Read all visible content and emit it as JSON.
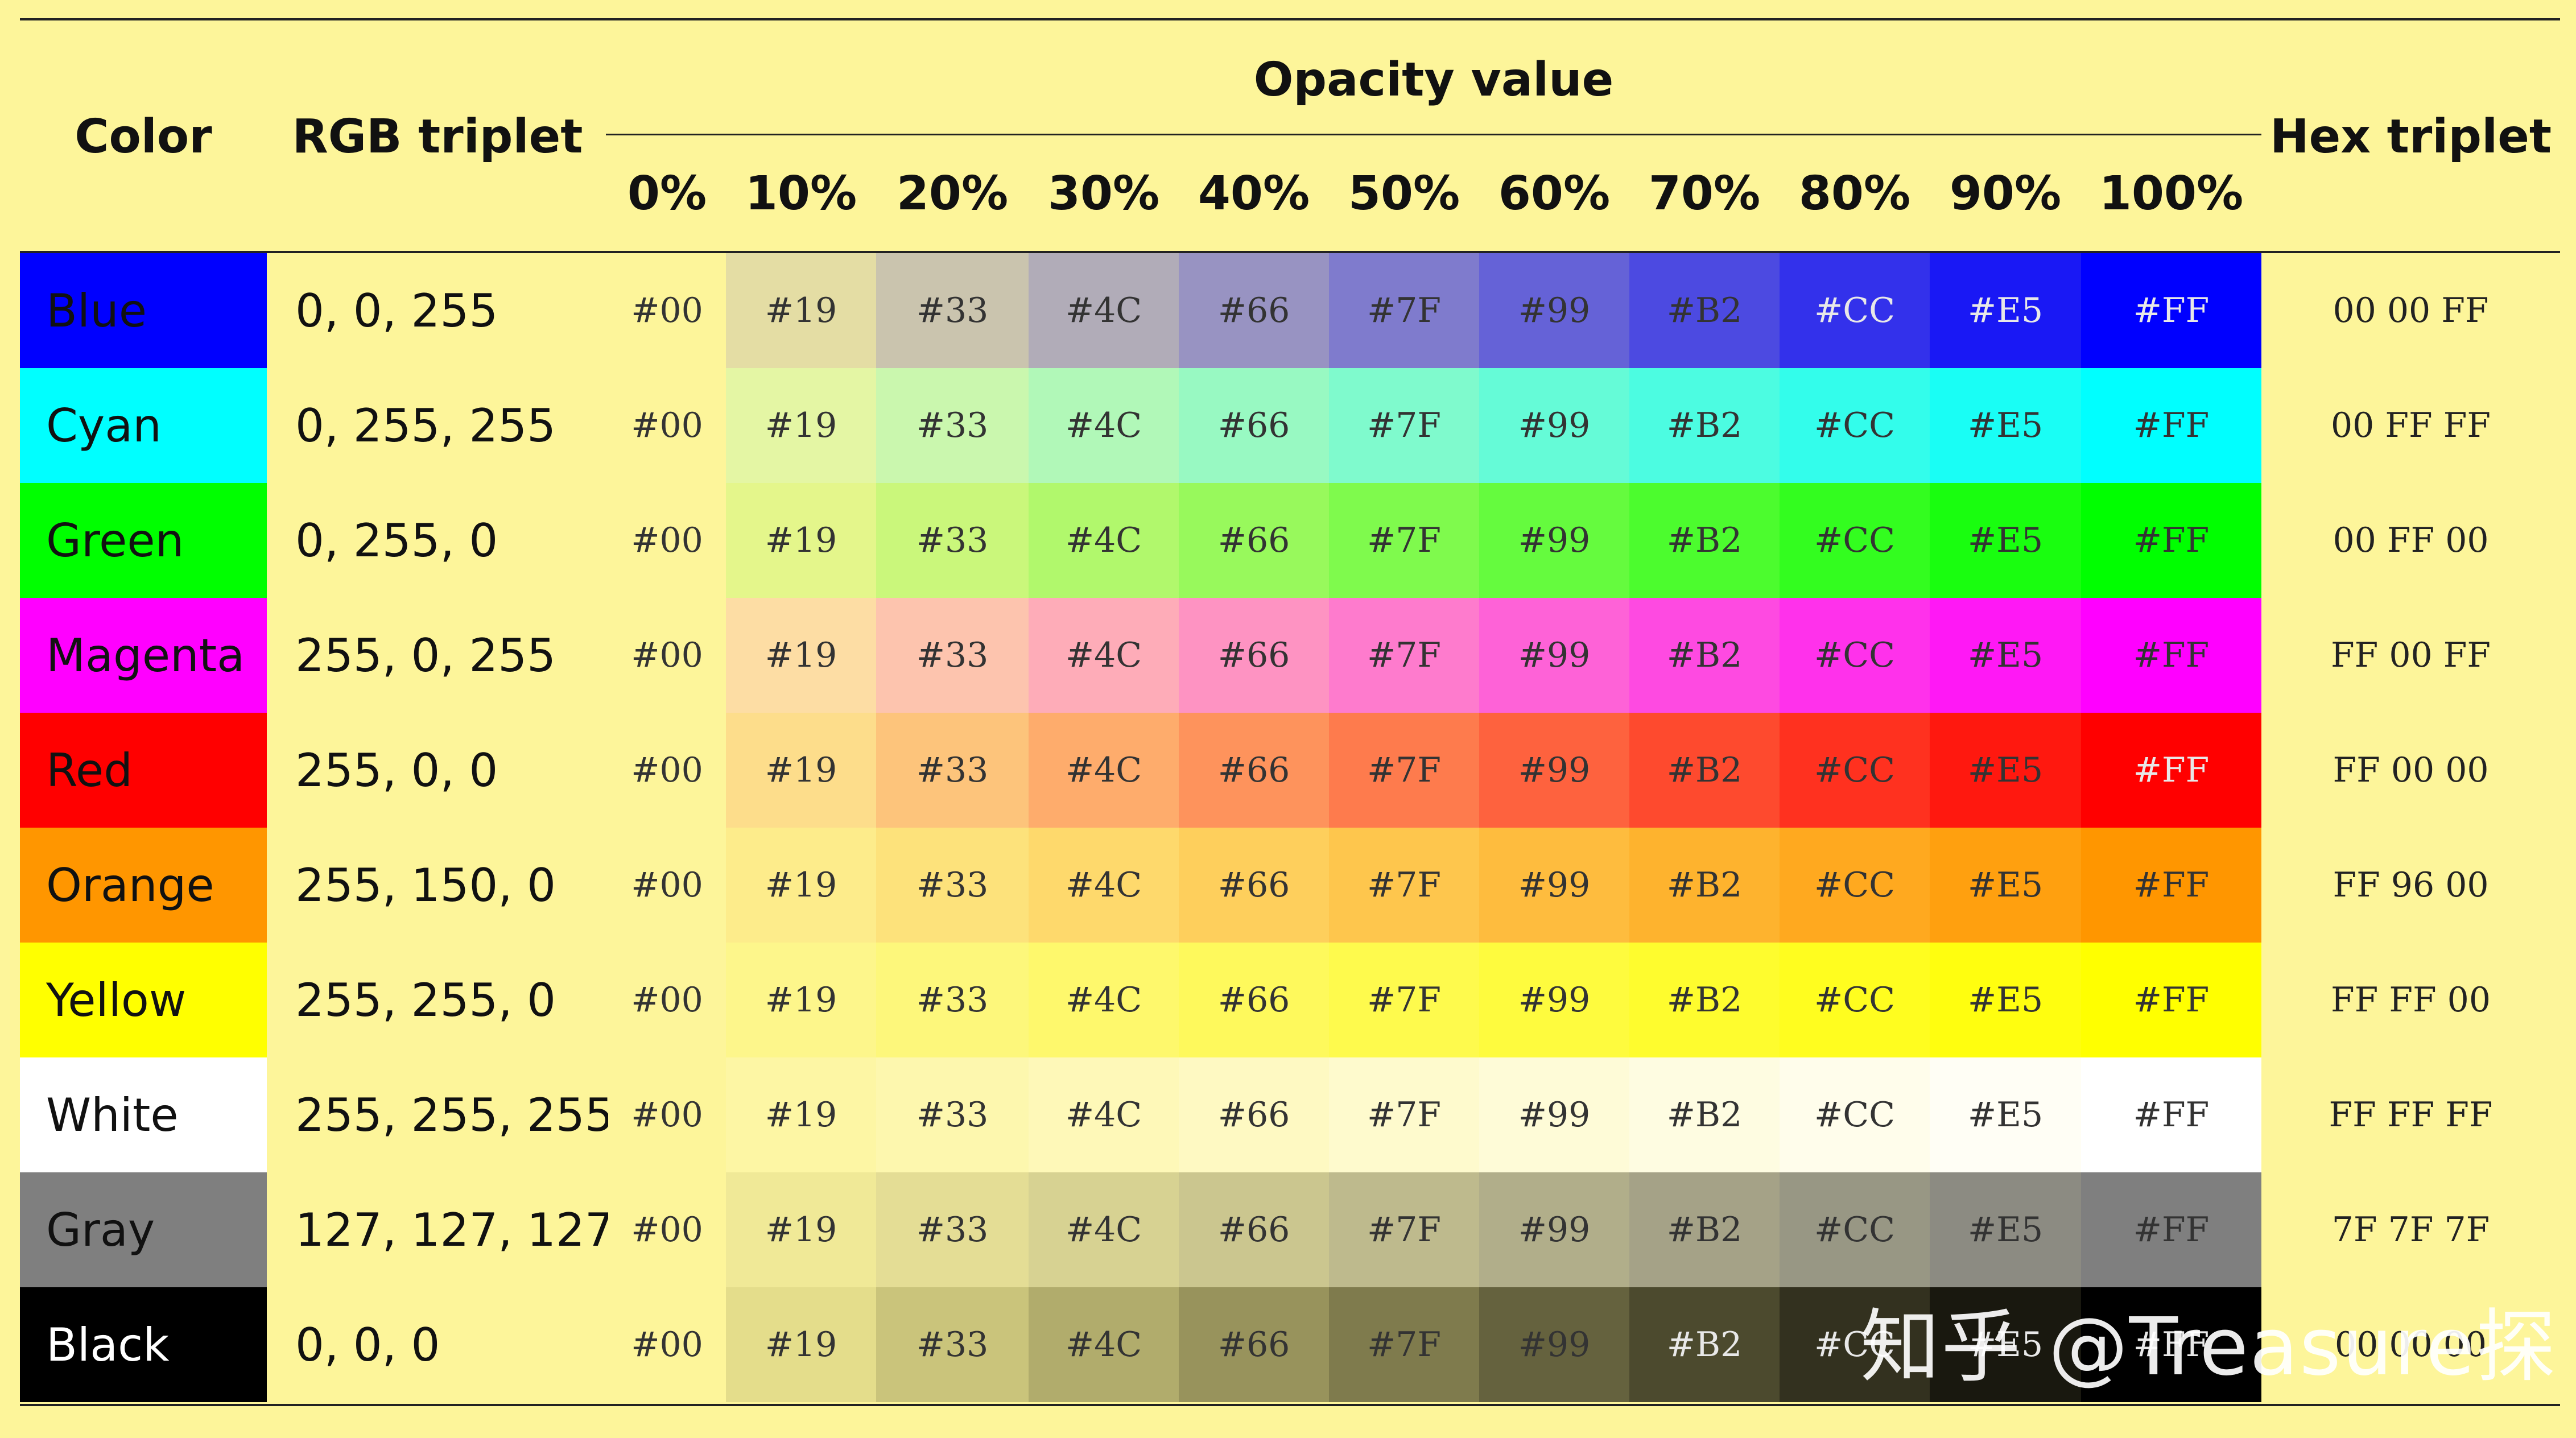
{
  "headers": {
    "color": "Color",
    "rgb": "RGB triplet",
    "opacity": "Opacity value",
    "hex": "Hex triplet",
    "opacity_levels": [
      "0%",
      "10%",
      "20%",
      "30%",
      "40%",
      "50%",
      "60%",
      "70%",
      "80%",
      "90%",
      "100%"
    ]
  },
  "opacity_codes": [
    "#00",
    "#19",
    "#33",
    "#4C",
    "#66",
    "#7F",
    "#99",
    "#B2",
    "#CC",
    "#E5",
    "#FF"
  ],
  "opacity_fractions": [
    0,
    0.1,
    0.2,
    0.3,
    0.4,
    0.5,
    0.6,
    0.7,
    0.8,
    0.9,
    1.0
  ],
  "background_color": "#fdf59a",
  "rows": [
    {
      "name": "Blue",
      "rgb": "0, 0, 255",
      "hex": "00 00 FF",
      "color": "#0000ff",
      "text_color": "#111111"
    },
    {
      "name": "Cyan",
      "rgb": "0, 255, 255",
      "hex": "00 FF FF",
      "color": "#00ffff",
      "text_color": "#111111"
    },
    {
      "name": "Green",
      "rgb": "0, 255, 0",
      "hex": "00 FF 00",
      "color": "#00ff00",
      "text_color": "#111111"
    },
    {
      "name": "Magenta",
      "rgb": "255, 0, 255",
      "hex": "FF 00 FF",
      "color": "#ff00ff",
      "text_color": "#111111"
    },
    {
      "name": "Red",
      "rgb": "255, 0, 0",
      "hex": "FF 00 00",
      "color": "#ff0000",
      "text_color": "#111111"
    },
    {
      "name": "Orange",
      "rgb": "255, 150, 0",
      "hex": "FF 96 00",
      "color": "#ff9600",
      "text_color": "#111111"
    },
    {
      "name": "Yellow",
      "rgb": "255, 255, 0",
      "hex": "FF FF 00",
      "color": "#ffff00",
      "text_color": "#111111"
    },
    {
      "name": "White",
      "rgb": "255, 255, 255",
      "hex": "FF FF FF",
      "color": "#ffffff",
      "text_color": "#111111"
    },
    {
      "name": "Gray",
      "rgb": "127, 127, 127",
      "hex": "7F 7F 7F",
      "color": "#7f7f7f",
      "text_color": "#111111"
    },
    {
      "name": "Black",
      "rgb": "0, 0, 0",
      "hex": "00 00 00",
      "color": "#000000",
      "text_color": "#ffffff"
    }
  ],
  "watermark": "知乎 @Treasure探"
}
